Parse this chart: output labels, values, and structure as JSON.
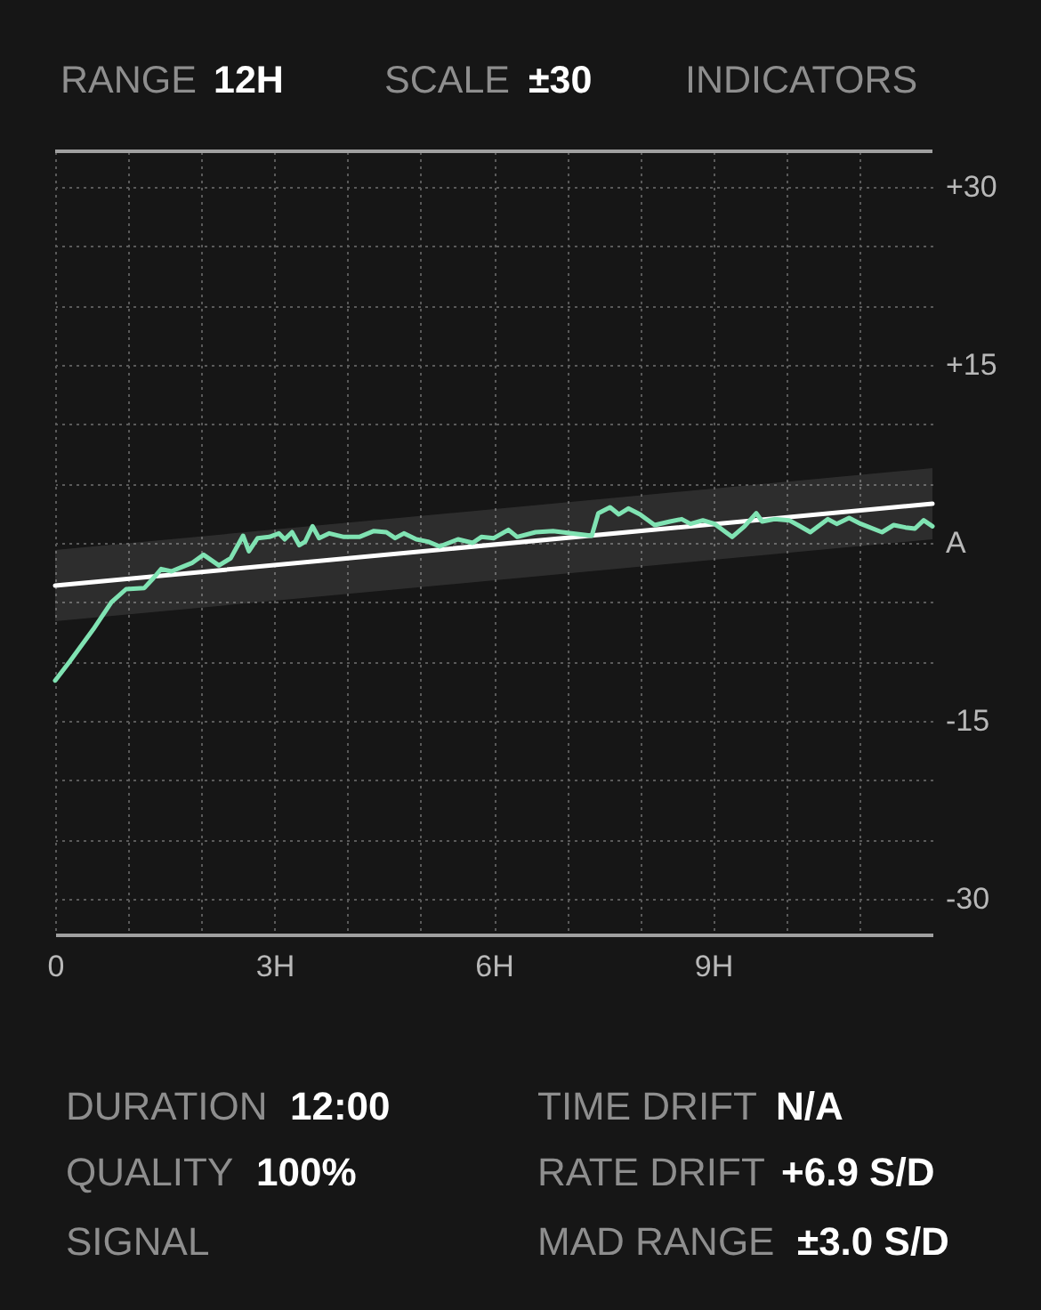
{
  "chart_data": {
    "type": "line",
    "annotations": [
      "RANGE",
      "12H",
      "SCALE",
      "±30",
      "INDICATORS",
      "DURATION",
      "12:00",
      "TIME DRIFT",
      "N/A",
      "QUALITY",
      "100%",
      "RATE DRIFT",
      "+6.9 S/D",
      "SIGNAL",
      "MAD RANGE",
      "±3.0 S/D"
    ],
    "series": [
      {
        "color": "#ffffff",
        "x": [
          0,
          12
        ],
        "values": [
          -3.6,
          3.3
        ],
        "lower": [
          -6.6,
          0.3
        ],
        "upper": [
          -0.6,
          6.3
        ]
      },
      {
        "color": "#80e3b3",
        "x": [
          0,
          0.2,
          0.52,
          0.77,
          0.97,
          1.22,
          1.34,
          1.45,
          1.59,
          1.75,
          1.87,
          2.03,
          2.24,
          2.4,
          2.57,
          2.65,
          2.77,
          2.93,
          3.06,
          3.14,
          3.24,
          3.34,
          3.42,
          3.52,
          3.61,
          3.75,
          3.95,
          4.16,
          4.36,
          4.53,
          4.65,
          4.77,
          4.94,
          5.1,
          5.26,
          5.51,
          5.71,
          5.83,
          6.0,
          6.2,
          6.32,
          6.57,
          6.81,
          7.06,
          7.34,
          7.43,
          7.59,
          7.71,
          7.84,
          8.0,
          8.2,
          8.41,
          8.57,
          8.69,
          8.86,
          9.02,
          9.26,
          9.43,
          9.59,
          9.67,
          9.84,
          10.04,
          10.16,
          10.33,
          10.57,
          10.69,
          10.86,
          11.02,
          11.31,
          11.47,
          11.63,
          11.76,
          11.88,
          12
        ],
        "values": [
          -11.6,
          -10.0,
          -7.3,
          -5.0,
          -3.9,
          -3.8,
          -3.0,
          -2.2,
          -2.4,
          -2.0,
          -1.7,
          -1.0,
          -1.9,
          -1.3,
          0.6,
          -0.7,
          0.4,
          0.5,
          0.8,
          0.3,
          0.9,
          -0.2,
          0.1,
          1.4,
          0.4,
          0.8,
          0.5,
          0.5,
          1.0,
          0.9,
          0.4,
          0.8,
          0.3,
          0.1,
          -0.3,
          0.3,
          0.0,
          0.5,
          0.4,
          1.1,
          0.5,
          0.9,
          1.0,
          0.8,
          0.6,
          2.5,
          3.0,
          2.4,
          2.9,
          2.4,
          1.5,
          1.8,
          2.0,
          1.6,
          1.9,
          1.6,
          0.5,
          1.4,
          2.5,
          1.8,
          2.0,
          1.9,
          1.5,
          0.9,
          2.0,
          1.6,
          2.1,
          1.6,
          0.9,
          1.5,
          1.3,
          1.2,
          1.9,
          1.4
        ]
      }
    ],
    "xlim": [
      0,
      12
    ],
    "xticks": [
      0,
      {
        "value": 1,
        "label": null
      },
      {
        "value": 2,
        "label": null
      },
      {
        "value": 3,
        "label": "3H"
      },
      {
        "value": 4,
        "label": null
      },
      {
        "value": 5,
        "label": null
      },
      {
        "value": 6,
        "label": "6H"
      },
      {
        "value": 7,
        "label": null
      },
      {
        "value": 8,
        "label": null
      },
      {
        "value": 9,
        "label": "9H"
      },
      {
        "value": 10,
        "label": null
      },
      {
        "value": 11,
        "label": null
      }
    ],
    "ylim": [
      -33,
      33
    ],
    "yticks": [
      -30,
      {
        "value": -25,
        "label": null
      },
      {
        "value": -20,
        "label": null
      },
      -15,
      {
        "value": -10,
        "label": null
      },
      {
        "value": -5,
        "label": null
      },
      {
        "value": 0,
        "label": "A"
      },
      {
        "value": 5,
        "label": null
      },
      {
        "value": 10,
        "label": null
      },
      {
        "value": 15,
        "label": "+15"
      },
      {
        "value": 20,
        "label": null
      },
      {
        "value": 25,
        "label": null
      },
      {
        "value": 30,
        "label": "+30"
      }
    ],
    "grid": true,
    "marker": "none",
    "line_style": "solid"
  }
}
